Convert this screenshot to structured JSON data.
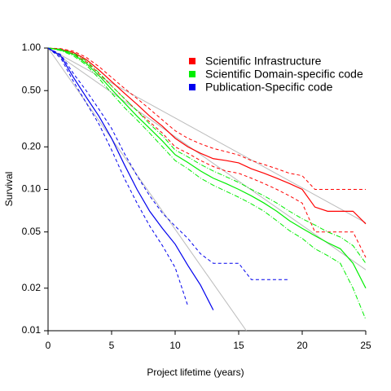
{
  "chart_data": {
    "type": "line",
    "xlabel": "Project lifetime (years)",
    "ylabel": "Survival",
    "log_y": true,
    "xlim": [
      0,
      25
    ],
    "ylim": [
      0.01,
      1
    ],
    "xticks": [
      0,
      5,
      10,
      15,
      20,
      25
    ],
    "yticks": [
      {
        "value": 1,
        "label": "1.00"
      },
      {
        "value": 0.5,
        "label": "0.50"
      },
      {
        "value": 0.2,
        "label": "0.20"
      },
      {
        "value": 0.1,
        "label": "0.10"
      },
      0.05,
      0.02,
      0.01
    ],
    "legend": "top-right",
    "fit_color": "#bbbbbb",
    "x": [
      0,
      1,
      2,
      3,
      4,
      5,
      6,
      7,
      8,
      9,
      10,
      11,
      12,
      13,
      14,
      15,
      16,
      17,
      18,
      19,
      20,
      21,
      22,
      23,
      24,
      25
    ],
    "series": [
      {
        "name": "Scientific Infrastructure",
        "color": "#ff0000",
        "values": [
          1,
          0.98,
          0.93,
          0.83,
          0.7,
          0.58,
          0.48,
          0.4,
          0.33,
          0.28,
          0.23,
          0.2,
          0.18,
          0.165,
          0.16,
          0.154,
          0.14,
          0.13,
          0.12,
          0.11,
          0.1,
          0.075,
          0.07,
          0.07,
          0.07,
          0.057
        ],
        "upper": [
          1,
          0.99,
          0.95,
          0.86,
          0.74,
          0.62,
          0.52,
          0.44,
          0.37,
          0.31,
          0.26,
          0.23,
          0.21,
          0.195,
          0.185,
          0.175,
          0.16,
          0.15,
          0.14,
          0.13,
          0.125,
          0.1,
          0.1,
          0.1,
          0.1,
          0.1
        ],
        "lower": [
          1,
          0.97,
          0.91,
          0.8,
          0.66,
          0.54,
          0.44,
          0.36,
          0.3,
          0.25,
          0.2,
          0.18,
          0.16,
          0.145,
          0.135,
          0.13,
          0.12,
          0.11,
          0.1,
          0.09,
          0.08,
          0.05,
          0.05,
          0.05,
          0.05,
          0.033
        ],
        "fit_x": [
          0,
          25
        ],
        "fit": [
          1,
          0.058
        ]
      },
      {
        "name": "Scientific Domain-specific code",
        "color": "#00ee00",
        "values": [
          1,
          0.97,
          0.9,
          0.78,
          0.64,
          0.51,
          0.41,
          0.33,
          0.27,
          0.22,
          0.176,
          0.155,
          0.135,
          0.12,
          0.11,
          0.1,
          0.09,
          0.08,
          0.07,
          0.06,
          0.053,
          0.047,
          0.042,
          0.038,
          0.03,
          0.02
        ],
        "upper": [
          1,
          0.98,
          0.92,
          0.81,
          0.67,
          0.54,
          0.44,
          0.36,
          0.29,
          0.24,
          0.19,
          0.17,
          0.15,
          0.135,
          0.123,
          0.112,
          0.1,
          0.09,
          0.08,
          0.07,
          0.062,
          0.056,
          0.05,
          0.046,
          0.04,
          0.03
        ],
        "lower": [
          1,
          0.96,
          0.88,
          0.76,
          0.61,
          0.48,
          0.38,
          0.31,
          0.25,
          0.2,
          0.16,
          0.14,
          0.12,
          0.107,
          0.097,
          0.088,
          0.079,
          0.07,
          0.06,
          0.051,
          0.045,
          0.038,
          0.034,
          0.03,
          0.02,
          0.012
        ],
        "fit_x": [
          0,
          25
        ],
        "fit": [
          1,
          0.027
        ]
      },
      {
        "name": "Publication-Specific code",
        "color": "#0000ee",
        "values": [
          1,
          0.88,
          0.62,
          0.45,
          0.33,
          0.23,
          0.15,
          0.1,
          0.07,
          0.053,
          0.041,
          0.029,
          0.021,
          0.014,
          null,
          null,
          null,
          null,
          null,
          null,
          null,
          null,
          null,
          null,
          null,
          null
        ],
        "upper": [
          1,
          0.9,
          0.66,
          0.5,
          0.37,
          0.27,
          0.18,
          0.125,
          0.09,
          0.068,
          0.055,
          0.045,
          0.035,
          0.03,
          0.03,
          0.03,
          0.023,
          0.023,
          0.023,
          0.023,
          null,
          null,
          null,
          null,
          null,
          null
        ],
        "lower": [
          1,
          0.85,
          0.58,
          0.41,
          0.29,
          0.19,
          0.12,
          0.08,
          0.055,
          0.04,
          0.028,
          0.015,
          null,
          null,
          null,
          null,
          null,
          null,
          null,
          null,
          null,
          null,
          null,
          null,
          null,
          null
        ],
        "fit_x": [
          0,
          15.6
        ],
        "fit": [
          1,
          0.01
        ]
      }
    ]
  }
}
